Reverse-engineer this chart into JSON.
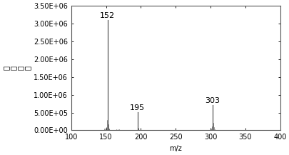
{
  "title": "",
  "xlabel": "m/z",
  "ylabel": "离子强度",
  "xlim": [
    100,
    400
  ],
  "ylim": [
    0,
    3500000.0
  ],
  "xticks": [
    100,
    150,
    200,
    250,
    300,
    350,
    400
  ],
  "yticks": [
    0,
    500000,
    1000000,
    1500000,
    2000000,
    2500000,
    3000000,
    3500000
  ],
  "ytick_labels": [
    "0.00E+00",
    "5.00E+05",
    "1.00E+06",
    "1.50E+06",
    "2.00E+06",
    "2.50E+06",
    "3.00E+06",
    "3.50E+06"
  ],
  "peaks": [
    {
      "mz": 152,
      "intensity": 3100000.0,
      "label": "152"
    },
    {
      "mz": 195,
      "intensity": 510000.0,
      "label": "195"
    },
    {
      "mz": 303,
      "intensity": 720000.0,
      "label": "303"
    }
  ],
  "noise": [
    {
      "mz": 120,
      "intensity": 8000
    },
    {
      "mz": 127,
      "intensity": 6000
    },
    {
      "mz": 135,
      "intensity": 8000
    },
    {
      "mz": 141,
      "intensity": 12000
    },
    {
      "mz": 144,
      "intensity": 10000
    },
    {
      "mz": 147,
      "intensity": 40000
    },
    {
      "mz": 148,
      "intensity": 30000
    },
    {
      "mz": 149,
      "intensity": 60000
    },
    {
      "mz": 150,
      "intensity": 90000
    },
    {
      "mz": 151,
      "intensity": 280000
    },
    {
      "mz": 153,
      "intensity": 160000
    },
    {
      "mz": 154,
      "intensity": 50000
    },
    {
      "mz": 155,
      "intensity": 20000
    },
    {
      "mz": 156,
      "intensity": 12000
    },
    {
      "mz": 158,
      "intensity": 8000
    },
    {
      "mz": 160,
      "intensity": 6000
    },
    {
      "mz": 162,
      "intensity": 10000
    },
    {
      "mz": 165,
      "intensity": 25000
    },
    {
      "mz": 167,
      "intensity": 30000
    },
    {
      "mz": 169,
      "intensity": 20000
    },
    {
      "mz": 171,
      "intensity": 10000
    },
    {
      "mz": 175,
      "intensity": 8000
    },
    {
      "mz": 178,
      "intensity": 6000
    },
    {
      "mz": 183,
      "intensity": 8000
    },
    {
      "mz": 187,
      "intensity": 10000
    },
    {
      "mz": 191,
      "intensity": 10000
    },
    {
      "mz": 193,
      "intensity": 15000
    },
    {
      "mz": 196,
      "intensity": 60000
    },
    {
      "mz": 197,
      "intensity": 25000
    },
    {
      "mz": 200,
      "intensity": 10000
    },
    {
      "mz": 205,
      "intensity": 6000
    },
    {
      "mz": 210,
      "intensity": 6000
    },
    {
      "mz": 215,
      "intensity": 5000
    },
    {
      "mz": 220,
      "intensity": 4000
    },
    {
      "mz": 225,
      "intensity": 4000
    },
    {
      "mz": 230,
      "intensity": 4000
    },
    {
      "mz": 235,
      "intensity": 4000
    },
    {
      "mz": 240,
      "intensity": 4000
    },
    {
      "mz": 245,
      "intensity": 4000
    },
    {
      "mz": 250,
      "intensity": 4000
    },
    {
      "mz": 255,
      "intensity": 4000
    },
    {
      "mz": 260,
      "intensity": 4000
    },
    {
      "mz": 265,
      "intensity": 4000
    },
    {
      "mz": 270,
      "intensity": 4000
    },
    {
      "mz": 275,
      "intensity": 4000
    },
    {
      "mz": 280,
      "intensity": 4000
    },
    {
      "mz": 285,
      "intensity": 4000
    },
    {
      "mz": 290,
      "intensity": 4000
    },
    {
      "mz": 295,
      "intensity": 4000
    },
    {
      "mz": 299,
      "intensity": 15000
    },
    {
      "mz": 300,
      "intensity": 20000
    },
    {
      "mz": 301,
      "intensity": 55000
    },
    {
      "mz": 302,
      "intensity": 110000
    },
    {
      "mz": 304,
      "intensity": 200000
    },
    {
      "mz": 305,
      "intensity": 80000
    },
    {
      "mz": 306,
      "intensity": 30000
    },
    {
      "mz": 307,
      "intensity": 15000
    },
    {
      "mz": 308,
      "intensity": 8000
    },
    {
      "mz": 312,
      "intensity": 6000
    },
    {
      "mz": 318,
      "intensity": 8000
    },
    {
      "mz": 323,
      "intensity": 6000
    },
    {
      "mz": 330,
      "intensity": 5000
    },
    {
      "mz": 338,
      "intensity": 5000
    },
    {
      "mz": 345,
      "intensity": 5000
    },
    {
      "mz": 355,
      "intensity": 4000
    },
    {
      "mz": 365,
      "intensity": 4000
    },
    {
      "mz": 375,
      "intensity": 4000
    },
    {
      "mz": 385,
      "intensity": 4000
    },
    {
      "mz": 395,
      "intensity": 4000
    }
  ],
  "line_color": "#404040",
  "background_color": "#ffffff",
  "label_fontsize": 7,
  "axis_fontsize": 7,
  "peak_label_fontsize": 8,
  "ylabel_chars": [
    "离",
    "子",
    "强",
    "度"
  ]
}
